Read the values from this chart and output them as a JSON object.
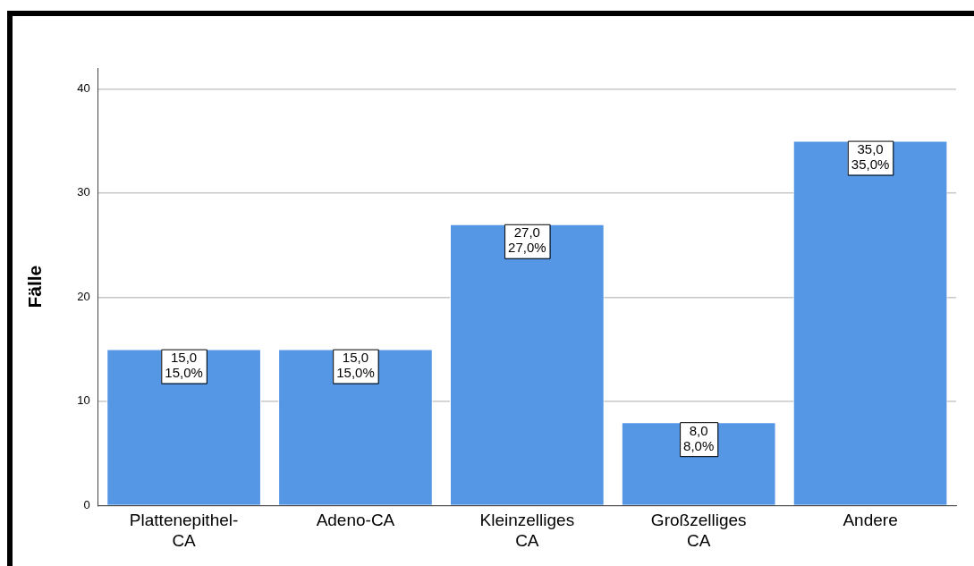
{
  "chart_data": {
    "type": "bar",
    "ylabel": "Fälle",
    "categories": [
      "Plattenepithel-\nCA",
      "Adeno-CA",
      "Kleinzelliges\nCA",
      "Großzelliges\nCA",
      "Andere"
    ],
    "values": [
      15,
      15,
      27,
      8,
      35
    ],
    "value_labels": [
      "15,0\n15,0%",
      "15,0\n15,0%",
      "27,0\n27,0%",
      "8,0\n8,0%",
      "35,0\n35,0%"
    ],
    "color": "#5596e5",
    "ylim": [
      0,
      42
    ],
    "yticks": [
      0,
      10,
      20,
      30,
      40
    ],
    "grid": "y",
    "legend": false
  }
}
